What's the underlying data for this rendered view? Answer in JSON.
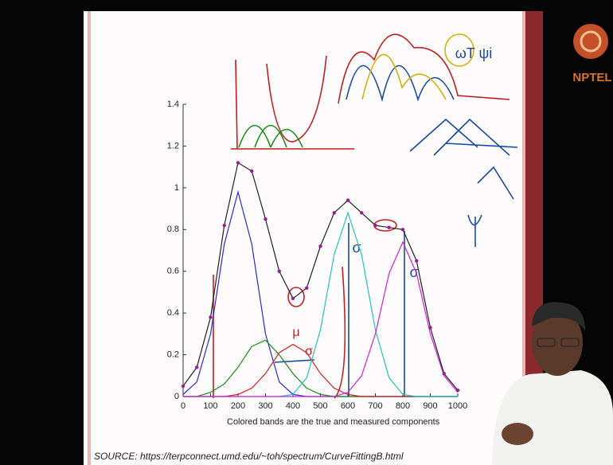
{
  "chart_data": {
    "type": "line",
    "xlabel": "Colored bands are the true and measured components",
    "source": "SOURCE: https://terpconnect.umd.edu/~toh/spectrum/CurveFittingB.html",
    "logo": "NPTEL",
    "annotations": [
      "μ",
      "σ",
      "σ",
      "σ",
      "ωT ψi"
    ],
    "x": [
      0,
      50,
      100,
      150,
      200,
      250,
      300,
      350,
      400,
      450,
      500,
      550,
      600,
      650,
      700,
      750,
      800,
      850,
      900,
      950,
      1000
    ],
    "series": [
      {
        "color": "#2a2ad4",
        "values": [
          0.01,
          0.07,
          0.3,
          0.73,
          0.98,
          0.73,
          0.3,
          0.07,
          0.01,
          0,
          0,
          0,
          0,
          0,
          0,
          0,
          0,
          0,
          0,
          0,
          0
        ]
      },
      {
        "color": "#1a8a1a",
        "values": [
          0,
          0,
          0.02,
          0.06,
          0.14,
          0.24,
          0.27,
          0.2,
          0.11,
          0.04,
          0.01,
          0,
          0,
          0,
          0,
          0,
          0,
          0,
          0,
          0,
          0
        ]
      },
      {
        "color": "#d42020",
        "values": [
          0,
          0,
          0,
          0,
          0.01,
          0.04,
          0.11,
          0.21,
          0.25,
          0.21,
          0.11,
          0.04,
          0.01,
          0,
          0,
          0,
          0,
          0,
          0,
          0,
          0
        ]
      },
      {
        "color": "#22c4c4",
        "values": [
          0,
          0,
          0,
          0,
          0,
          0,
          0,
          0,
          0.01,
          0.09,
          0.32,
          0.68,
          0.88,
          0.68,
          0.32,
          0.09,
          0.01,
          0,
          0,
          0,
          0
        ]
      },
      {
        "color": "#d024d0",
        "values": [
          0,
          0,
          0,
          0,
          0,
          0,
          0,
          0,
          0,
          0,
          0,
          0,
          0.02,
          0.1,
          0.3,
          0.59,
          0.74,
          0.59,
          0.3,
          0.1,
          0.02
        ]
      },
      {
        "color": "#9a1a9a",
        "markers": true,
        "values": [
          0.05,
          0.14,
          0.38,
          0.82,
          1.12,
          1.08,
          0.85,
          0.6,
          0.47,
          0.52,
          0.72,
          0.88,
          0.94,
          0.88,
          0.82,
          0.81,
          0.8,
          0.65,
          0.33,
          0.11,
          0.03
        ]
      }
    ],
    "xlim": [
      0,
      1000
    ],
    "xticks": [
      0,
      100,
      200,
      300,
      400,
      500,
      600,
      700,
      800,
      900,
      1000
    ],
    "ylim": [
      0,
      1.4
    ],
    "yticks": [
      0,
      0.2,
      0.4,
      0.6,
      0.8,
      1,
      1.2,
      1.4
    ]
  }
}
